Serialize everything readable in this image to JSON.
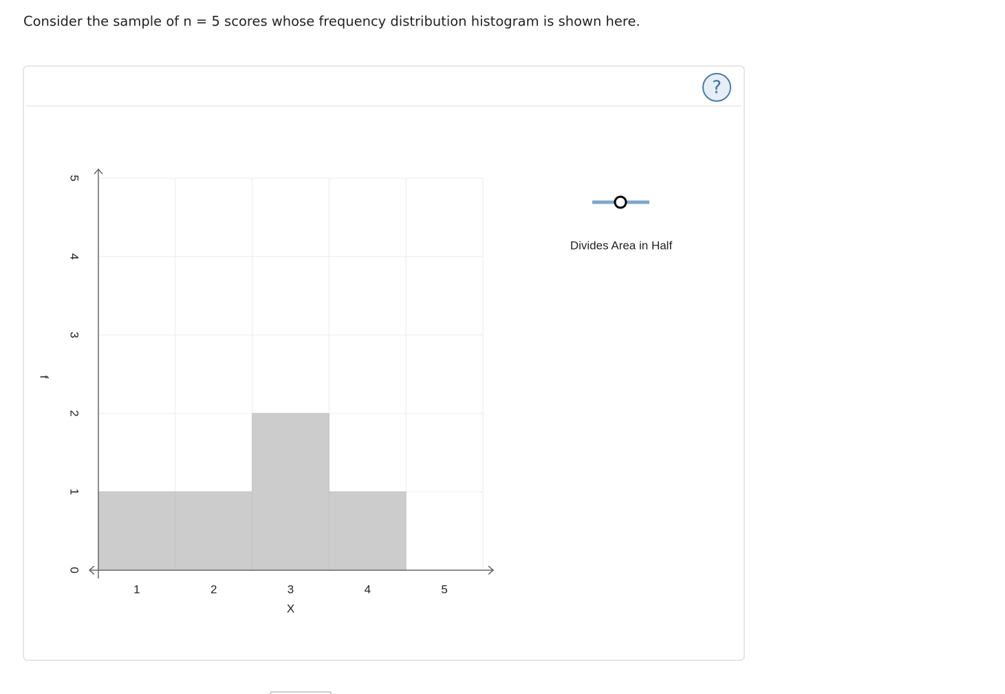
{
  "question": "Consider the sample of n = 5 scores whose frequency distribution histogram is shown here.",
  "help_icon": "?",
  "tool_label": "Divides Area in Half",
  "chart_data": {
    "type": "histogram",
    "bins": [
      0.5,
      1.5,
      2.5,
      3.5,
      4.5,
      5.5
    ],
    "values": [
      1,
      1,
      2,
      1,
      0
    ],
    "color": "#cccccc",
    "x_label": "X",
    "y_label": "f",
    "xlim": [
      0.5,
      5.5
    ],
    "xticks": [
      1,
      2,
      3,
      4,
      5
    ],
    "ylim": [
      0,
      5
    ],
    "yticks": [
      0,
      1,
      2,
      3,
      4,
      5
    ],
    "grid": true
  }
}
